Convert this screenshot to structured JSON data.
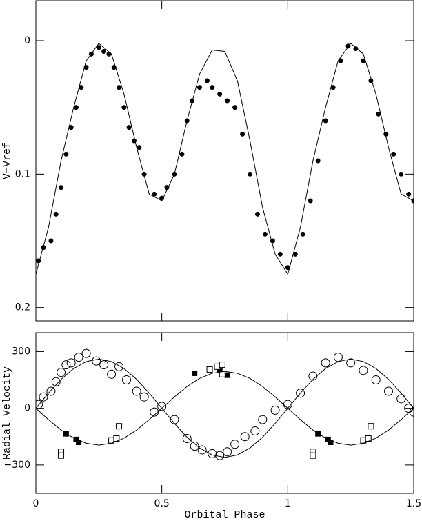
{
  "chart_data": [
    {
      "type": "scatter",
      "ylabel": "V−Vref",
      "xlim": [
        0,
        1.5
      ],
      "ylim": [
        -0.03,
        0.21
      ],
      "y_inverted": true,
      "xticks": [
        0,
        0.5,
        1,
        1.5
      ],
      "show_xtick_labels": false,
      "yticks": [
        0,
        0.1,
        0.2
      ],
      "series": [
        {
          "kind": "points",
          "marker": "filled-circle",
          "color": "#000000",
          "x": [
            0.01,
            0.03,
            0.06,
            0.08,
            0.1,
            0.12,
            0.14,
            0.16,
            0.18,
            0.2,
            0.22,
            0.25,
            0.27,
            0.29,
            0.31,
            0.33,
            0.35,
            0.37,
            0.39,
            0.41,
            0.43,
            0.47,
            0.5,
            0.52,
            0.55,
            0.58,
            0.6,
            0.62,
            0.65,
            0.68,
            0.7,
            0.73,
            0.76,
            0.79,
            0.82,
            0.85,
            0.88,
            0.91,
            0.94,
            0.97,
            1.0,
            1.03,
            1.06,
            1.09,
            1.12,
            1.15,
            1.18,
            1.21,
            1.24,
            1.27,
            1.3,
            1.33,
            1.36,
            1.39,
            1.42,
            1.45,
            1.48,
            1.5
          ],
          "values": [
            0.165,
            0.155,
            0.15,
            0.13,
            0.11,
            0.085,
            0.065,
            0.05,
            0.035,
            0.02,
            0.01,
            0.005,
            0.008,
            0.01,
            0.02,
            0.035,
            0.05,
            0.065,
            0.075,
            0.08,
            0.1,
            0.115,
            0.118,
            0.11,
            0.1,
            0.085,
            0.06,
            0.045,
            0.035,
            0.03,
            0.035,
            0.04,
            0.045,
            0.05,
            0.07,
            0.1,
            0.13,
            0.145,
            0.15,
            0.16,
            0.17,
            0.16,
            0.145,
            0.12,
            0.09,
            0.06,
            0.035,
            0.015,
            0.004,
            0.006,
            0.015,
            0.03,
            0.055,
            0.07,
            0.085,
            0.1,
            0.115,
            0.12
          ]
        },
        {
          "kind": "line",
          "color": "#000000",
          "x": [
            0,
            0.05,
            0.1,
            0.15,
            0.2,
            0.25,
            0.3,
            0.35,
            0.4,
            0.45,
            0.5,
            0.55,
            0.6,
            0.65,
            0.7,
            0.75,
            0.8,
            0.85,
            0.9,
            0.95,
            1.0,
            1.05,
            1.1,
            1.15,
            1.2,
            1.25,
            1.3,
            1.35,
            1.4,
            1.45,
            1.5
          ],
          "values": [
            0.175,
            0.14,
            0.09,
            0.05,
            0.015,
            0.002,
            0.01,
            0.04,
            0.08,
            0.115,
            0.12,
            0.1,
            0.06,
            0.025,
            0.007,
            0.008,
            0.03,
            0.075,
            0.125,
            0.16,
            0.175,
            0.14,
            0.09,
            0.05,
            0.015,
            0.002,
            0.01,
            0.04,
            0.08,
            0.115,
            0.12
          ]
        }
      ]
    },
    {
      "type": "scatter",
      "ylabel": "Radial Velocity",
      "xlabel": "Orbital Phase",
      "xlim": [
        0,
        1.5
      ],
      "ylim": [
        -450,
        400
      ],
      "y_inverted": false,
      "xticks": [
        0,
        0.5,
        1,
        1.5
      ],
      "show_xtick_labels": true,
      "yticks": [
        {
          "value": -300,
          "label": "−300"
        },
        0,
        300
      ],
      "series": [
        {
          "kind": "points",
          "marker": "open-circle",
          "color": "#000000",
          "x": [
            0.01,
            0.03,
            0.06,
            0.08,
            0.1,
            0.12,
            0.14,
            0.17,
            0.2,
            0.24,
            0.27,
            0.3,
            0.33,
            0.36,
            0.4,
            0.43,
            0.47,
            0.5,
            0.55,
            0.6,
            0.63,
            0.66,
            0.7,
            0.73,
            0.76,
            0.79,
            0.83,
            0.87,
            0.9,
            0.95,
            1.0,
            1.05,
            1.1,
            1.15,
            1.2,
            1.25,
            1.3,
            1.35,
            1.4,
            1.45,
            1.48,
            1.5
          ],
          "values": [
            20,
            60,
            90,
            140,
            190,
            230,
            240,
            270,
            290,
            250,
            230,
            180,
            220,
            150,
            90,
            60,
            -20,
            10,
            -60,
            -160,
            -200,
            -220,
            -240,
            -250,
            -230,
            -190,
            -150,
            -120,
            -60,
            -10,
            20,
            80,
            170,
            240,
            270,
            240,
            200,
            150,
            90,
            50,
            0,
            -20
          ]
        },
        {
          "kind": "points",
          "marker": "filled-square",
          "color": "#000000",
          "x": [
            0.12,
            0.16,
            0.17,
            0.63,
            0.73,
            0.76,
            1.12,
            1.16,
            1.17
          ],
          "values": [
            -135,
            -165,
            -180,
            185,
            205,
            175,
            -135,
            -165,
            -180
          ]
        },
        {
          "kind": "points",
          "marker": "open-square",
          "color": "#000000",
          "x": [
            0.1,
            0.1,
            0.3,
            0.32,
            0.33,
            0.69,
            0.72,
            0.74,
            0.74,
            1.1,
            1.1,
            1.3,
            1.32,
            1.33
          ],
          "values": [
            -230,
            -250,
            -170,
            -160,
            -95,
            205,
            220,
            230,
            180,
            -230,
            -250,
            -170,
            -160,
            -95
          ]
        },
        {
          "kind": "line",
          "color": "#000000",
          "x": [
            0,
            0.05,
            0.1,
            0.15,
            0.2,
            0.25,
            0.3,
            0.35,
            0.4,
            0.45,
            0.5,
            0.55,
            0.6,
            0.65,
            0.7,
            0.75,
            0.8,
            0.85,
            0.9,
            0.95,
            1.0,
            1.05,
            1.1,
            1.15,
            1.2,
            1.25,
            1.3,
            1.35,
            1.4,
            1.45,
            1.5
          ],
          "values": [
            0,
            80,
            153,
            210,
            247,
            260,
            247,
            210,
            153,
            80,
            0,
            -80,
            -153,
            -210,
            -247,
            -260,
            -247,
            -210,
            -153,
            -80,
            0,
            80,
            153,
            210,
            247,
            260,
            247,
            210,
            153,
            80,
            0
          ]
        },
        {
          "kind": "line",
          "color": "#000000",
          "x": [
            0,
            0.05,
            0.1,
            0.15,
            0.2,
            0.25,
            0.3,
            0.35,
            0.4,
            0.45,
            0.5,
            0.55,
            0.6,
            0.65,
            0.7,
            0.75,
            0.8,
            0.85,
            0.9,
            0.95,
            1.0,
            1.05,
            1.1,
            1.15,
            1.2,
            1.25,
            1.3,
            1.35,
            1.4,
            1.45,
            1.5
          ],
          "values": [
            0,
            -60,
            -115,
            -158,
            -185,
            -195,
            -185,
            -158,
            -115,
            -60,
            0,
            60,
            115,
            158,
            185,
            195,
            185,
            158,
            115,
            60,
            0,
            -60,
            -115,
            -158,
            -185,
            -195,
            -185,
            -158,
            -115,
            -60,
            0
          ]
        }
      ]
    }
  ]
}
